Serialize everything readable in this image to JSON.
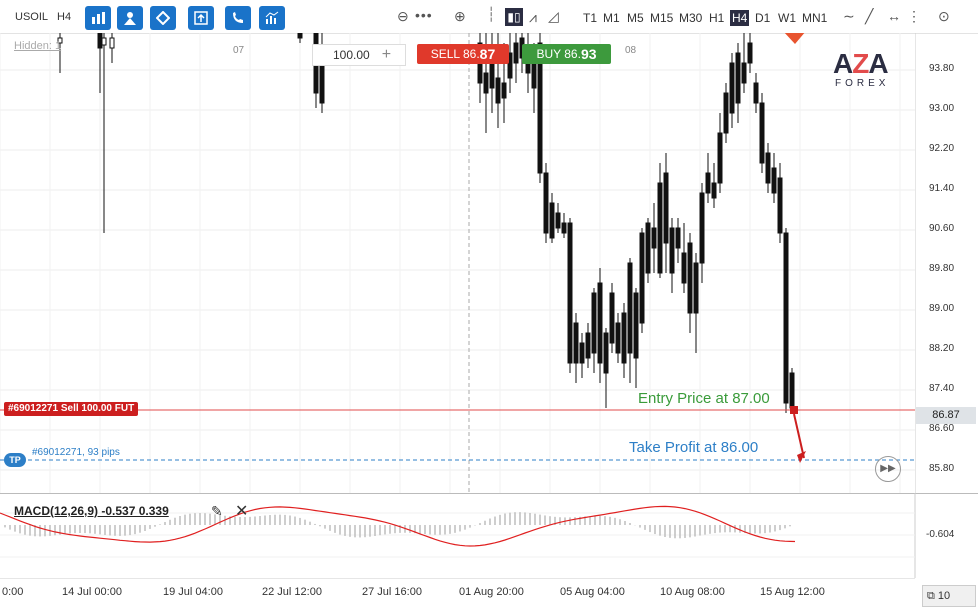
{
  "toolbar": {
    "symbol": "USOIL",
    "period": "H4",
    "buttons": [
      "bar-chart-icon",
      "person-tracker-icon",
      "diamond-icon",
      "export-icon",
      "phone-icon",
      "indicators-icon"
    ],
    "timeframes": [
      {
        "label": "T1",
        "active": false
      },
      {
        "label": "M1",
        "active": false
      },
      {
        "label": "M5",
        "active": false
      },
      {
        "label": "M15",
        "active": false
      },
      {
        "label": "M30",
        "active": false
      },
      {
        "label": "H1",
        "active": false
      },
      {
        "label": "H4",
        "active": true
      },
      {
        "label": "D1",
        "active": false
      },
      {
        "label": "W1",
        "active": false
      },
      {
        "label": "MN1",
        "active": false
      }
    ]
  },
  "hidden_label": "Hidden: 1",
  "trade": {
    "quantity": "100.00",
    "sell_prefix": "SELL 86.",
    "sell_suffix": "87",
    "buy_prefix": "BUY 86.",
    "buy_suffix": "93"
  },
  "date_labels_top": [
    "07",
    "08"
  ],
  "price_ticks": [
    "93.80",
    "93.00",
    "92.20",
    "91.40",
    "90.60",
    "89.80",
    "89.00",
    "88.20",
    "87.40",
    "86.60",
    "85.80"
  ],
  "current_price": "86.87",
  "order": {
    "label": "#69012271 Sell 100.00 FUT",
    "tp_badge": "TP",
    "tp_info": "#69012271, 93 pips",
    "entry_note": "Entry Price at 87.00",
    "tp_note": "Take Profit at 86.00"
  },
  "macd": {
    "label": "MACD(12,26,9) -0.537 0.339",
    "axis_value": "-0.604"
  },
  "time_ticks": [
    "0:00",
    "14 Jul 00:00",
    "19 Jul 04:00",
    "22 Jul 12:00",
    "27 Jul 16:00",
    "01 Aug 20:00",
    "05 Aug 04:00",
    "10 Aug 08:00",
    "15 Aug 12:00"
  ],
  "zoom": "10",
  "logo": {
    "top": "AZA",
    "bottom": "FOREX"
  },
  "colors": {
    "accent": "#1a73c9",
    "sell": "#e0392b",
    "buy": "#3d9a3d",
    "order_line": "#e24b4b",
    "tp_line": "#2d7fc7",
    "macd_signal": "#e02020"
  }
}
